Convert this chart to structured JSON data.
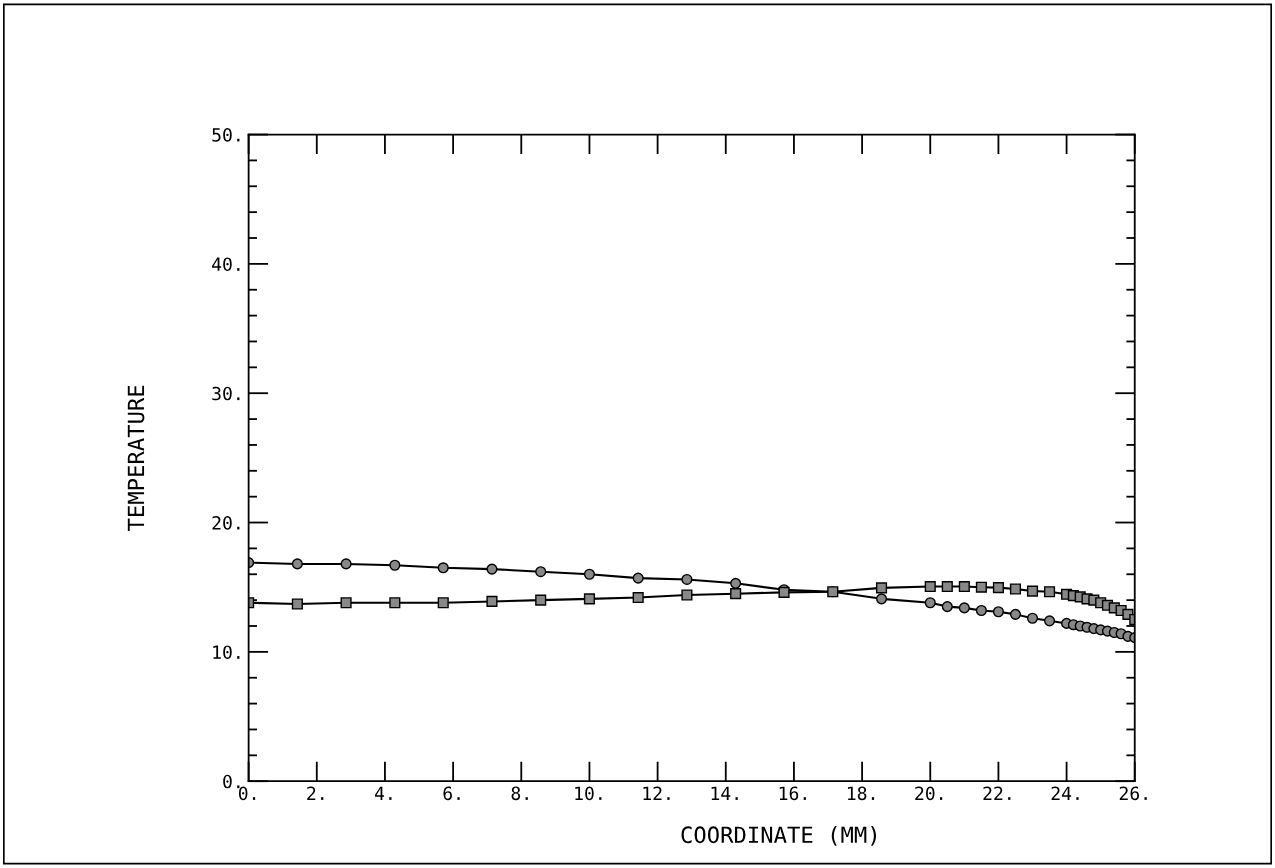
{
  "chart_data": {
    "type": "line",
    "xlabel": "COORDINATE (MM)",
    "ylabel": "TEMPERATURE",
    "xlim": [
      0,
      26
    ],
    "ylim": [
      0,
      50
    ],
    "xticks": [
      {
        "value": 0,
        "label": "0."
      },
      {
        "value": 2,
        "label": "2."
      },
      {
        "value": 4,
        "label": "4."
      },
      {
        "value": 6,
        "label": "6."
      },
      {
        "value": 8,
        "label": "8."
      },
      {
        "value": 10,
        "label": "10."
      },
      {
        "value": 12,
        "label": "12."
      },
      {
        "value": 14,
        "label": "14."
      },
      {
        "value": 16,
        "label": "16."
      },
      {
        "value": 18,
        "label": "18."
      },
      {
        "value": 20,
        "label": "20."
      },
      {
        "value": 22,
        "label": "22."
      },
      {
        "value": 24,
        "label": "24."
      },
      {
        "value": 26,
        "label": "26."
      }
    ],
    "yticks": [
      {
        "value": 0,
        "label": "0."
      },
      {
        "value": 10,
        "label": "10."
      },
      {
        "value": 20,
        "label": "20."
      },
      {
        "value": 30,
        "label": "30."
      },
      {
        "value": 40,
        "label": "40."
      },
      {
        "value": 50,
        "label": "50."
      }
    ],
    "grid": false,
    "line_style": "solid",
    "x": [
      0,
      1.43,
      2.86,
      4.29,
      5.71,
      7.14,
      8.57,
      10,
      11.43,
      12.86,
      14.29,
      15.71,
      17.14,
      18.57,
      20,
      20.5,
      21,
      21.5,
      22,
      22.5,
      23,
      23.5,
      24,
      24.2,
      24.4,
      24.6,
      24.8,
      25,
      25.2,
      25.4,
      25.6,
      25.8,
      26
    ],
    "series": [
      {
        "color": "#000000",
        "marker": "circle",
        "values": [
          16.9,
          16.8,
          16.8,
          16.7,
          16.5,
          16.4,
          16.2,
          16.0,
          15.7,
          15.6,
          15.3,
          14.8,
          14.65,
          14.1,
          13.8,
          13.5,
          13.4,
          13.2,
          13.1,
          12.9,
          12.6,
          12.4,
          12.2,
          12.1,
          12.0,
          11.9,
          11.8,
          11.7,
          11.6,
          11.5,
          11.4,
          11.2,
          11.1
        ]
      },
      {
        "color": "#000000",
        "marker": "square",
        "values": [
          13.8,
          13.7,
          13.8,
          13.8,
          13.8,
          13.9,
          14.0,
          14.1,
          14.2,
          14.4,
          14.5,
          14.6,
          14.65,
          14.95,
          15.05,
          15.05,
          15.05,
          15.0,
          14.97,
          14.86,
          14.7,
          14.65,
          14.45,
          14.35,
          14.25,
          14.1,
          14.0,
          13.8,
          13.6,
          13.4,
          13.2,
          12.9,
          12.5
        ]
      }
    ]
  }
}
